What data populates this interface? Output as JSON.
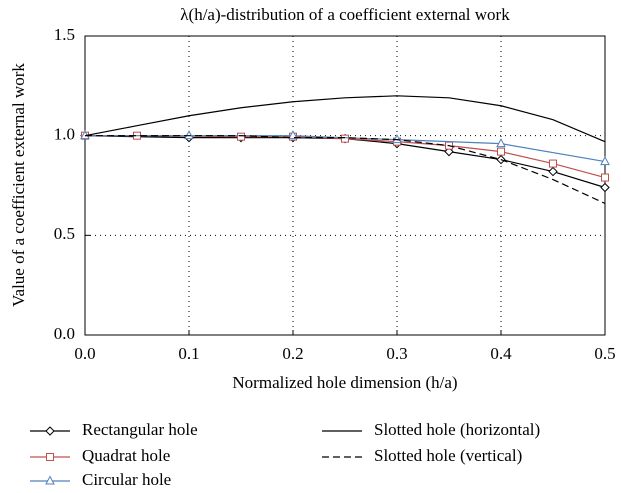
{
  "chart_data": {
    "type": "line",
    "title": "λ(h/a)-distribution of a coefficient external work",
    "x_label": "Normalized hole dimension (h/a)",
    "y_label": "Value of a coefficient external work",
    "xlim": [
      0,
      0.5
    ],
    "ylim": [
      0,
      1.5
    ],
    "xticks": [
      {
        "value": 0,
        "label": "0.0"
      },
      {
        "value": 0.1,
        "label": "0.1"
      },
      {
        "value": 0.2,
        "label": "0.2"
      },
      {
        "value": 0.3,
        "label": "0.3"
      },
      {
        "value": 0.4,
        "label": "0.4"
      },
      {
        "value": 0.5,
        "label": "0.5"
      }
    ],
    "yticks": [
      {
        "value": 0,
        "label": "0.0"
      },
      {
        "value": 0.5,
        "label": "0.5"
      },
      {
        "value": 1,
        "label": "1.0"
      },
      {
        "value": 1.5,
        "label": "1.5"
      }
    ],
    "grid": true,
    "series": [
      {
        "name": "Rectangular hole",
        "color": "#000000",
        "marker": "diamond",
        "dash": "none",
        "x": [
          0,
          0.1,
          0.15,
          0.2,
          0.25,
          0.3,
          0.35,
          0.4,
          0.45,
          0.5
        ],
        "values": [
          1.0,
          0.99,
          0.99,
          0.99,
          0.985,
          0.96,
          0.92,
          0.88,
          0.82,
          0.74
        ]
      },
      {
        "name": "Quadrat hole",
        "color": "#c0504d",
        "marker": "square",
        "dash": "none",
        "x": [
          0,
          0.05,
          0.15,
          0.2,
          0.25,
          0.3,
          0.35,
          0.4,
          0.45,
          0.5
        ],
        "values": [
          1.0,
          1.0,
          0.995,
          0.995,
          0.985,
          0.97,
          0.95,
          0.92,
          0.86,
          0.79
        ]
      },
      {
        "name": "Circular hole",
        "color": "#4f81bd",
        "marker": "triangle",
        "dash": "none",
        "x": [
          0,
          0.1,
          0.2,
          0.3,
          0.4,
          0.5
        ],
        "values": [
          1.0,
          1.0,
          1.0,
          0.98,
          0.96,
          0.87
        ]
      },
      {
        "name": "Slotted hole (horizontal)",
        "color": "#000000",
        "marker": "none",
        "dash": "none",
        "x": [
          0,
          0.05,
          0.1,
          0.15,
          0.2,
          0.25,
          0.3,
          0.35,
          0.4,
          0.45,
          0.5
        ],
        "values": [
          1.0,
          1.05,
          1.1,
          1.14,
          1.17,
          1.19,
          1.2,
          1.19,
          1.15,
          1.08,
          0.97
        ]
      },
      {
        "name": "Slotted hole (vertical)",
        "color": "#000000",
        "marker": "none",
        "dash": "dashed",
        "x": [
          0,
          0.05,
          0.1,
          0.15,
          0.2,
          0.25,
          0.3,
          0.35,
          0.4,
          0.45,
          0.5
        ],
        "values": [
          1.0,
          1.0,
          1.0,
          1.0,
          0.99,
          0.99,
          0.98,
          0.95,
          0.88,
          0.78,
          0.66
        ]
      }
    ]
  }
}
